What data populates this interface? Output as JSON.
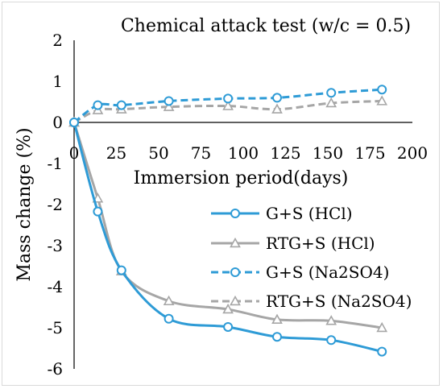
{
  "chart_data": {
    "type": "line",
    "title": "Chemical attack test (w/c = 0.5)",
    "xlabel": "Immersion period(days)",
    "ylabel": "Mass change (%)",
    "xlim": [
      0,
      200
    ],
    "ylim": [
      -6,
      2
    ],
    "x_ticks": [
      "0",
      "25",
      "50",
      "75",
      "100",
      "125",
      "150",
      "175",
      "200"
    ],
    "y_ticks": [
      "2",
      "1",
      "0",
      "-1",
      "-2",
      "-3",
      "-4",
      "-5",
      "-6"
    ],
    "grid": false,
    "legend_position": "center-right",
    "x": [
      0,
      14,
      28,
      56,
      91,
      120,
      152,
      182
    ],
    "series": [
      {
        "name": "G+S  (HCl)",
        "color": "#2e9bd6",
        "dash": "solid",
        "marker": "circle",
        "values": [
          0,
          -2.17,
          -3.6,
          -4.78,
          -4.98,
          -5.22,
          -5.3,
          -5.58
        ]
      },
      {
        "name": "RTG+S  (HCl)",
        "color": "#a6a6a6",
        "dash": "solid",
        "marker": "triangle",
        "values": [
          0,
          -1.85,
          -3.62,
          -4.35,
          -4.55,
          -4.8,
          -4.83,
          -5.0
        ]
      },
      {
        "name": "G+S (Na2SO4)",
        "color": "#2e9bd6",
        "dash": "dashed",
        "marker": "circle",
        "values": [
          0,
          0.42,
          0.42,
          0.52,
          0.58,
          0.6,
          0.72,
          0.8
        ]
      },
      {
        "name": "RTG+S (Na2SO4)",
        "color": "#a6a6a6",
        "dash": "dashed",
        "marker": "triangle",
        "values": [
          0,
          0.3,
          0.32,
          0.38,
          0.4,
          0.32,
          0.47,
          0.52
        ]
      }
    ]
  }
}
